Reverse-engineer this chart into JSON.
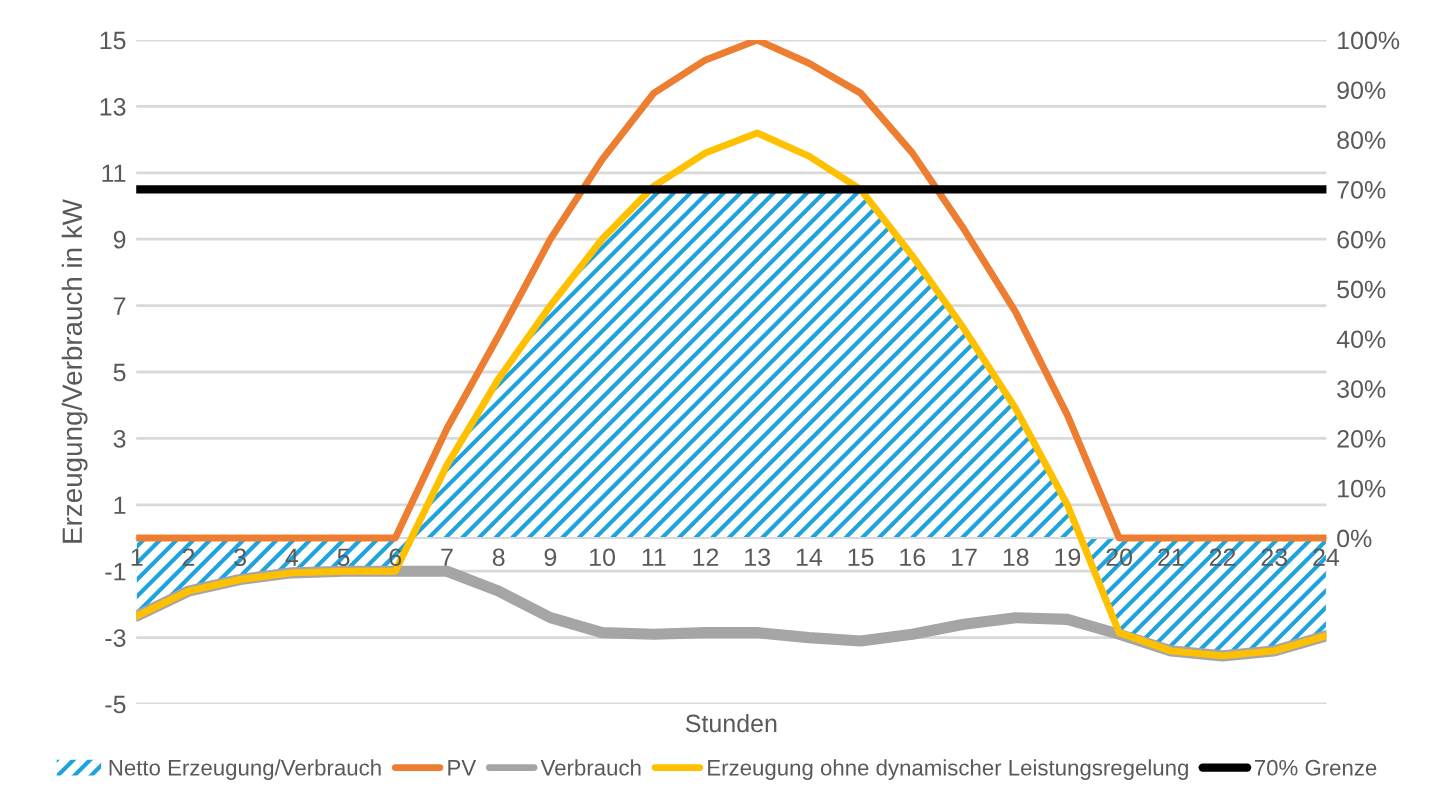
{
  "chart_data": {
    "type": "line",
    "xlabel": "Stunden",
    "ylabel": "Erzeugung/Verbrauch in kW",
    "categories": [
      "1",
      "2",
      "3",
      "4",
      "5",
      "6",
      "7",
      "8",
      "9",
      "10",
      "11",
      "12",
      "13",
      "14",
      "15",
      "16",
      "17",
      "18",
      "19",
      "20",
      "21",
      "22",
      "23",
      "24"
    ],
    "series": [
      {
        "name": "Netto Erzeugung/Verbrauch",
        "type": "area",
        "color": "#1fa3dc",
        "values": [
          -2.35,
          -1.6,
          -1.25,
          -1.05,
          -1.0,
          -1.0,
          2.2,
          4.8,
          7.0,
          9.0,
          10.5,
          10.5,
          10.5,
          10.5,
          10.5,
          8.5,
          6.3,
          3.9,
          1.0,
          -2.85,
          -3.4,
          -3.55,
          -3.4,
          -2.95
        ]
      },
      {
        "name": "PV",
        "color": "#ed7d31",
        "values": [
          0,
          0,
          0,
          0,
          0,
          0,
          3.3,
          6.1,
          9.0,
          11.4,
          13.4,
          14.4,
          15.0,
          14.3,
          13.4,
          11.6,
          9.3,
          6.8,
          3.7,
          0,
          0,
          0,
          0,
          0
        ]
      },
      {
        "name": "Verbrauch",
        "color": "#a5a5a5",
        "values": [
          -2.35,
          -1.6,
          -1.25,
          -1.05,
          -1.0,
          -1.0,
          -1.0,
          -1.6,
          -2.4,
          -2.85,
          -2.9,
          -2.85,
          -2.85,
          -3.0,
          -3.1,
          -2.9,
          -2.6,
          -2.4,
          -2.45,
          -2.9,
          -3.4,
          -3.55,
          -3.4,
          -2.95
        ]
      },
      {
        "name": "Erzeugung ohne dynamischer Leistungsregelung",
        "color": "#ffc000",
        "values": [
          -2.35,
          -1.6,
          -1.25,
          -1.05,
          -1.0,
          -1.0,
          2.2,
          4.8,
          7.0,
          9.0,
          10.6,
          11.6,
          12.2,
          11.5,
          10.5,
          8.5,
          6.3,
          3.9,
          1.0,
          -2.85,
          -3.4,
          -3.55,
          -3.4,
          -2.95
        ]
      }
    ],
    "ref_lines": [
      {
        "axis": "y2",
        "value": 70,
        "label": "70% Grenze",
        "color": "#000000"
      }
    ],
    "ylim": [
      -5,
      15
    ],
    "yticks": [
      -5,
      -3,
      -1,
      1,
      3,
      5,
      7,
      9,
      11,
      13,
      15
    ],
    "y2lim": [
      -33.33,
      100
    ],
    "y2ticks": [
      {
        "value": 0,
        "label": "0%"
      },
      {
        "value": 10,
        "label": "10%"
      },
      {
        "value": 20,
        "label": "20%"
      },
      {
        "value": 30,
        "label": "30%"
      },
      {
        "value": 40,
        "label": "40%"
      },
      {
        "value": 50,
        "label": "50%"
      },
      {
        "value": 60,
        "label": "60%"
      },
      {
        "value": 70,
        "label": "70%"
      },
      {
        "value": 80,
        "label": "80%"
      },
      {
        "value": 90,
        "label": "90%"
      },
      {
        "value": 100,
        "label": "100%"
      }
    ],
    "grid": "y",
    "legend": "bottom"
  }
}
